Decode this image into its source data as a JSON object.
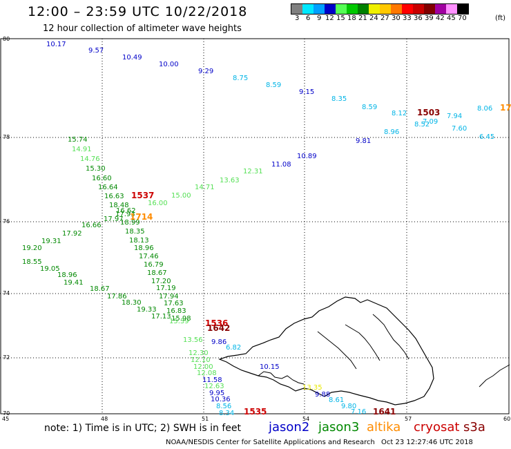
{
  "header": {
    "title": "12:00 – 23:59 UTC 10/22/2018",
    "subtitle": "12 hour collection of altimeter wave heights"
  },
  "colorbar": {
    "unit": "(ft)",
    "labels": [
      "3",
      "6",
      "9",
      "12",
      "15",
      "18",
      "21",
      "24",
      "27",
      "30",
      "33",
      "36",
      "39",
      "42",
      "45",
      "70"
    ],
    "colors": [
      "#808080",
      "#00e8ff",
      "#00a0ff",
      "#0000c8",
      "#55ff55",
      "#00c800",
      "#008000",
      "#f0f000",
      "#ffc800",
      "#ff7800",
      "#ff0000",
      "#c80000",
      "#800000",
      "#a000a0",
      "#ff90ff",
      "#000000"
    ]
  },
  "axes": {
    "lon_labels": [
      "45",
      "48",
      "51",
      "54",
      "57",
      "60"
    ],
    "lat_labels": [
      "80",
      "78",
      "76",
      "74",
      "72",
      "70"
    ]
  },
  "tracks": [
    {
      "color": "#0000c8",
      "points": [
        [
          "10.17",
          67,
          67
        ],
        [
          "9.57",
          128,
          76
        ],
        [
          "10.49",
          177,
          86
        ],
        [
          "10.00",
          230,
          96
        ],
        [
          "9.29",
          287,
          106
        ],
        [
          "9.15",
          433,
          136
        ],
        [
          "9.81",
          515,
          207
        ],
        [
          "10.89",
          430,
          229
        ],
        [
          "11.08",
          393,
          241
        ],
        [
          "10.15",
          376,
          534
        ],
        [
          "9.86",
          306,
          498
        ],
        [
          "11.58",
          293,
          553
        ],
        [
          "9.95",
          303,
          572
        ],
        [
          "10.36",
          305,
          581
        ],
        [
          "9.88",
          456,
          574
        ]
      ]
    },
    {
      "color": "#00b4e6",
      "points": [
        [
          "8.75",
          337,
          116
        ],
        [
          "8.59",
          385,
          126
        ],
        [
          "8.35",
          480,
          146
        ],
        [
          "8.59",
          524,
          158
        ],
        [
          "8.12",
          567,
          167
        ],
        [
          "7.94",
          647,
          171
        ],
        [
          "8.06",
          691,
          160
        ],
        [
          "8.52",
          600,
          183
        ],
        [
          "7.09",
          612,
          179
        ],
        [
          "7.60",
          654,
          189
        ],
        [
          "8.96",
          556,
          194
        ],
        [
          "6.45",
          694,
          201
        ],
        [
          "6.82",
          327,
          506
        ],
        [
          "8.56",
          313,
          591
        ],
        [
          "8.34",
          317,
          601
        ],
        [
          "8.61",
          476,
          582
        ],
        [
          "9.80",
          494,
          591
        ],
        [
          "7.16",
          508,
          599
        ]
      ]
    },
    {
      "color": "#55e055",
      "points": [
        [
          "12.31",
          352,
          251
        ],
        [
          "13.63",
          318,
          264
        ],
        [
          "14.71",
          282,
          274
        ],
        [
          "15.00",
          248,
          286
        ],
        [
          "16.00",
          214,
          297
        ],
        [
          "14.91",
          104,
          219
        ],
        [
          "14.76",
          116,
          233
        ],
        [
          "13.56",
          265,
          495
        ],
        [
          "12.30",
          273,
          514
        ],
        [
          "12.10",
          276,
          524
        ],
        [
          "12.00",
          280,
          534
        ],
        [
          "12.08",
          285,
          543
        ],
        [
          "12.63",
          296,
          562
        ],
        [
          "15.39",
          245,
          468
        ]
      ]
    },
    {
      "color": "#008800",
      "points": [
        [
          "15.74",
          98,
          205
        ],
        [
          "15.30",
          124,
          247
        ],
        [
          "16.60",
          133,
          261
        ],
        [
          "16.64",
          142,
          274
        ],
        [
          "16.63",
          151,
          287
        ],
        [
          "18.48",
          158,
          300
        ],
        [
          "16.62",
          168,
          308
        ],
        [
          "17.93",
          167,
          313
        ],
        [
          "17.97",
          150,
          320
        ],
        [
          "16.66",
          118,
          329
        ],
        [
          "18.99",
          174,
          325
        ],
        [
          "17.92",
          90,
          341
        ],
        [
          "18.35",
          181,
          338
        ],
        [
          "18.13",
          187,
          351
        ],
        [
          "19.31",
          60,
          352
        ],
        [
          "18.96",
          194,
          362
        ],
        [
          "19.20",
          32,
          362
        ],
        [
          "17.46",
          201,
          374
        ],
        [
          "16.79",
          208,
          386
        ],
        [
          "18.55",
          32,
          382
        ],
        [
          "19.05",
          58,
          392
        ],
        [
          "18.67",
          213,
          398
        ],
        [
          "18.96",
          83,
          401
        ],
        [
          "17.20",
          219,
          410
        ],
        [
          "19.41",
          92,
          412
        ],
        [
          "17.19",
          226,
          420
        ],
        [
          "18.67",
          130,
          421
        ],
        [
          "17.94",
          230,
          432
        ],
        [
          "17.86",
          155,
          432
        ],
        [
          "17.63",
          237,
          442
        ],
        [
          "18.30",
          176,
          441
        ],
        [
          "16.83",
          241,
          453
        ],
        [
          "19.33",
          198,
          451
        ],
        [
          "15.98",
          248,
          464
        ],
        [
          "17.13",
          219,
          461
        ]
      ]
    },
    {
      "color": "#ff8c00",
      "points": [
        [
          "1714",
          188,
          318
        ],
        [
          "17",
          724,
          160
        ]
      ]
    },
    {
      "color": "#e8e800",
      "points": [
        [
          "13.35",
          438,
          564
        ]
      ]
    },
    {
      "color": "#cc0000",
      "points": [
        [
          "1537",
          190,
          287
        ],
        [
          "1536",
          297,
          472
        ],
        [
          "1535",
          353,
          600
        ]
      ]
    },
    {
      "color": "#880000",
      "points": [
        [
          "1503",
          604,
          167
        ],
        [
          "1642",
          300,
          479
        ],
        [
          "1641",
          540,
          600
        ]
      ]
    }
  ],
  "footer": {
    "note": "note:  1) Time is in UTC;  2) SWH is in feet",
    "satellites": [
      {
        "name": "jason2",
        "color": "#0000c8"
      },
      {
        "name": "jason3",
        "color": "#008800"
      },
      {
        "name": "altika",
        "color": "#ff8c00"
      },
      {
        "name": "cryosat",
        "color": "#cc0000"
      },
      {
        "name": "s3a",
        "color": "#880000"
      }
    ],
    "credit": "NOAA/NESDIS Center for Satellite Applications and Research",
    "timestamp": "Oct 23 12:27:46 UTC 2018"
  }
}
